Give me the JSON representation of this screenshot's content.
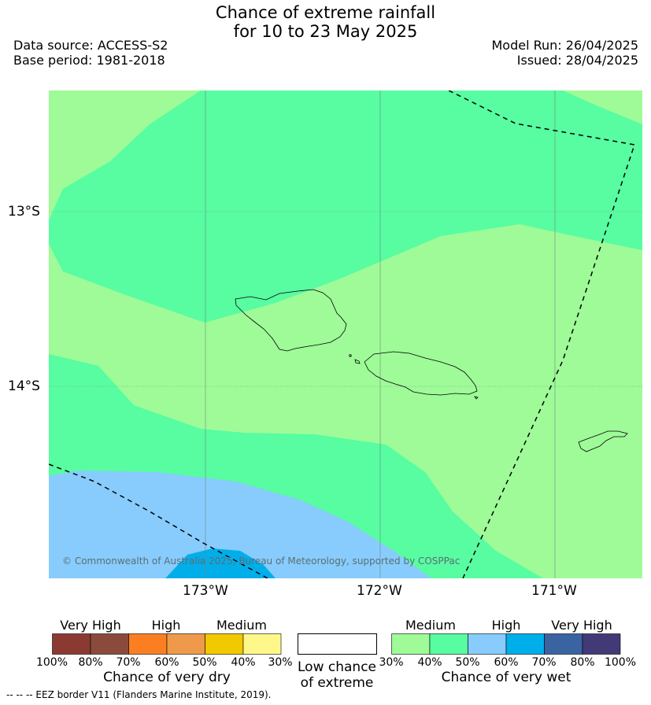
{
  "title": {
    "line1": "Chance of extreme rainfall",
    "line2": "for 10 to 23 May 2025"
  },
  "meta": {
    "data_source": "Data source: ACCESS-S2",
    "base_period": "Base period: 1981-2018",
    "model_run": "Model Run: 26/04/2025",
    "issued": "Issued: 28/04/2025"
  },
  "map": {
    "lat_labels": [
      "13°S",
      "14°S"
    ],
    "lon_labels": [
      "173°W",
      "172°W",
      "171°W"
    ],
    "copyright": "© Commonwealth of Australia 2025, Bureau of Meteorology, supported by COSPPac",
    "colors": {
      "medium_wet": "#9efb98",
      "high_wet_50": "#58fca1",
      "high_wet_60": "#87ccfd",
      "very_high_wet_70": "#00aeea"
    }
  },
  "legend": {
    "dry": {
      "headers": [
        "Very High",
        "High",
        "Medium"
      ],
      "ticks": [
        "100%",
        "80%",
        "70%",
        "60%",
        "50%",
        "40%",
        "30%"
      ],
      "colors": [
        "#8b3a32",
        "#8a4b3d",
        "#fb7f22",
        "#ef9a4a",
        "#f2c800",
        "#fef88a"
      ],
      "caption": "Chance of very dry"
    },
    "neutral": {
      "caption_line1": "Low chance",
      "caption_line2": "of extreme"
    },
    "wet": {
      "headers": [
        "Medium",
        "High",
        "Very High"
      ],
      "ticks": [
        "30%",
        "40%",
        "50%",
        "60%",
        "70%",
        "80%",
        "100%"
      ],
      "colors": [
        "#9efb98",
        "#58fca1",
        "#87ccfd",
        "#00aeea",
        "#3a63a1",
        "#413a77"
      ],
      "caption": "Chance of very wet"
    }
  },
  "footer": "--  --  -- EEZ border V11 (Flanders Marine Institute, 2019)."
}
